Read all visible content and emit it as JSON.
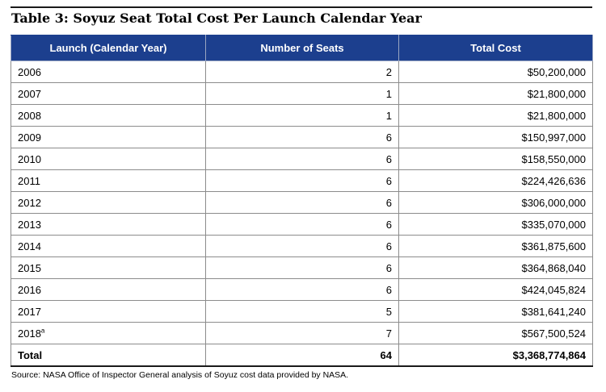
{
  "title": "Table 3:  Soyuz Seat Total Cost Per Launch Calendar Year",
  "columns": [
    "Launch (Calendar Year)",
    "Number of Seats",
    "Total Cost"
  ],
  "rows": [
    {
      "year": "2006",
      "footnote": "",
      "seats": "2",
      "cost": "$50,200,000"
    },
    {
      "year": "2007",
      "footnote": "",
      "seats": "1",
      "cost": "$21,800,000"
    },
    {
      "year": "2008",
      "footnote": "",
      "seats": "1",
      "cost": "$21,800,000"
    },
    {
      "year": "2009",
      "footnote": "",
      "seats": "6",
      "cost": "$150,997,000"
    },
    {
      "year": "2010",
      "footnote": "",
      "seats": "6",
      "cost": "$158,550,000"
    },
    {
      "year": "2011",
      "footnote": "",
      "seats": "6",
      "cost": "$224,426,636"
    },
    {
      "year": "2012",
      "footnote": "",
      "seats": "6",
      "cost": "$306,000,000"
    },
    {
      "year": "2013",
      "footnote": "",
      "seats": "6",
      "cost": "$335,070,000"
    },
    {
      "year": "2014",
      "footnote": "",
      "seats": "6",
      "cost": "$361,875,600"
    },
    {
      "year": "2015",
      "footnote": "",
      "seats": "6",
      "cost": "$364,868,040"
    },
    {
      "year": "2016",
      "footnote": "",
      "seats": "6",
      "cost": "$424,045,824"
    },
    {
      "year": "2017",
      "footnote": "",
      "seats": "5",
      "cost": "$381,641,240"
    },
    {
      "year": "2018",
      "footnote": "a",
      "seats": "7",
      "cost": "$567,500,524"
    }
  ],
  "total": {
    "label": "Total",
    "seats": "64",
    "cost": "$3,368,774,864"
  },
  "source": "Source:  NASA Office of Inspector General analysis of Soyuz cost data provided by NASA.",
  "colors": {
    "header_bg": "#1c3f8e",
    "header_text": "#ffffff"
  }
}
